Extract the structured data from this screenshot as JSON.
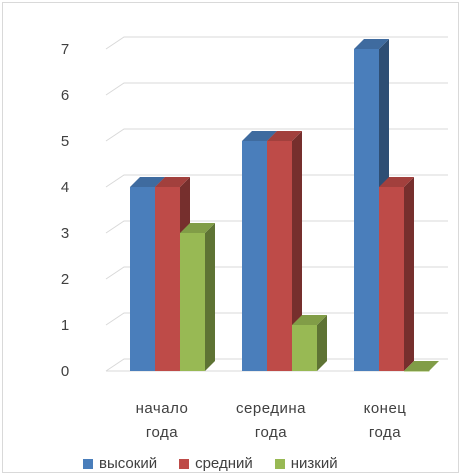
{
  "chart_data": {
    "type": "bar",
    "categories": [
      "начало года",
      "середина года",
      "конец года"
    ],
    "category_lines": [
      [
        "начало",
        "года"
      ],
      [
        "середина",
        "года"
      ],
      [
        "конец",
        "года"
      ]
    ],
    "series": [
      {
        "name": "высокий",
        "values": [
          4,
          5,
          7
        ],
        "color": "#4a7ebb"
      },
      {
        "name": "средний",
        "values": [
          4,
          5,
          4
        ],
        "color": "#be4b48"
      },
      {
        "name": "низкий",
        "values": [
          3,
          1,
          0
        ],
        "color": "#98b954"
      }
    ],
    "ylim": [
      0,
      7
    ],
    "yticks": [
      0,
      1,
      2,
      3,
      4,
      5,
      6,
      7
    ],
    "grid": true,
    "legend_position": "bottom",
    "style": "3d-clustered-column"
  }
}
